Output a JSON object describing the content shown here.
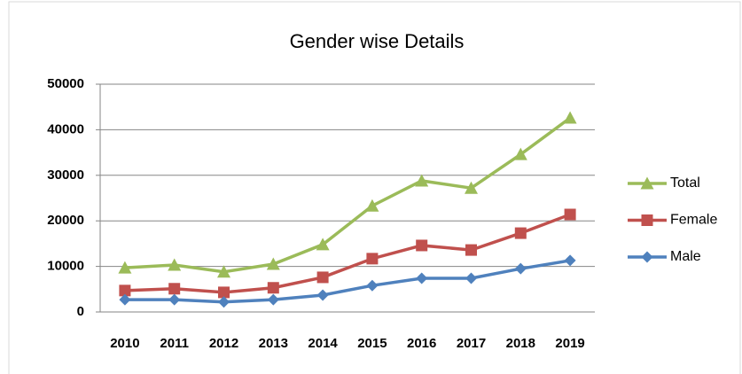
{
  "chart_data": {
    "type": "line",
    "title": "Gender wise Details",
    "categories": [
      "2010",
      "2011",
      "2012",
      "2013",
      "2014",
      "2015",
      "2016",
      "2017",
      "2018",
      "2019"
    ],
    "series": [
      {
        "name": "Total",
        "color": "#9bbb59",
        "marker": "triangle",
        "values": [
          9700,
          10300,
          8800,
          10500,
          14800,
          23300,
          28800,
          27200,
          34600,
          42600
        ]
      },
      {
        "name": "Female",
        "color": "#c0504d",
        "marker": "square",
        "values": [
          4700,
          5100,
          4300,
          5300,
          7600,
          11700,
          14600,
          13600,
          17300,
          21400
        ]
      },
      {
        "name": "Male",
        "color": "#4f81bd",
        "marker": "diamond",
        "values": [
          2700,
          2700,
          2200,
          2700,
          3700,
          5800,
          7400,
          7400,
          9500,
          11300
        ]
      }
    ],
    "ylim": [
      0,
      50000
    ],
    "yticks": [
      0,
      10000,
      20000,
      30000,
      40000,
      50000
    ],
    "grid": true,
    "legend": "right"
  }
}
